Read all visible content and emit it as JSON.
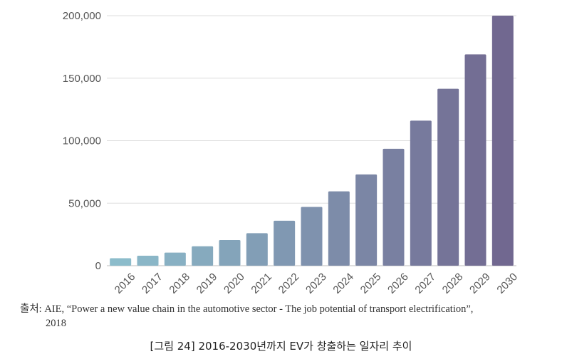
{
  "chart_data": {
    "type": "bar",
    "categories": [
      "2016",
      "2017",
      "2018",
      "2019",
      "2020",
      "2021",
      "2022",
      "2023",
      "2024",
      "2025",
      "2026",
      "2027",
      "2028",
      "2029",
      "2030"
    ],
    "values": [
      6000,
      8000,
      10500,
      15500,
      20500,
      26000,
      36000,
      47000,
      59500,
      73000,
      93500,
      116000,
      141500,
      169000,
      200000
    ],
    "ylim": [
      0,
      200000
    ],
    "yticks": [
      0,
      50000,
      100000,
      150000,
      200000
    ],
    "ytick_labels": [
      "0",
      "50,000",
      "100,000",
      "150,000",
      "200,000"
    ],
    "grid": true,
    "color_start": "#8cbccb",
    "color_end": "#716890",
    "title": "",
    "xlabel": "",
    "ylabel": ""
  },
  "source": {
    "line1": "출처: AIE, “Power a new value chain in the automotive sector - The job potential of transport electrification”,",
    "line2": "2018"
  },
  "caption": "[그림 24] 2016-2030년까지 EV가 창출하는 일자리 추이"
}
